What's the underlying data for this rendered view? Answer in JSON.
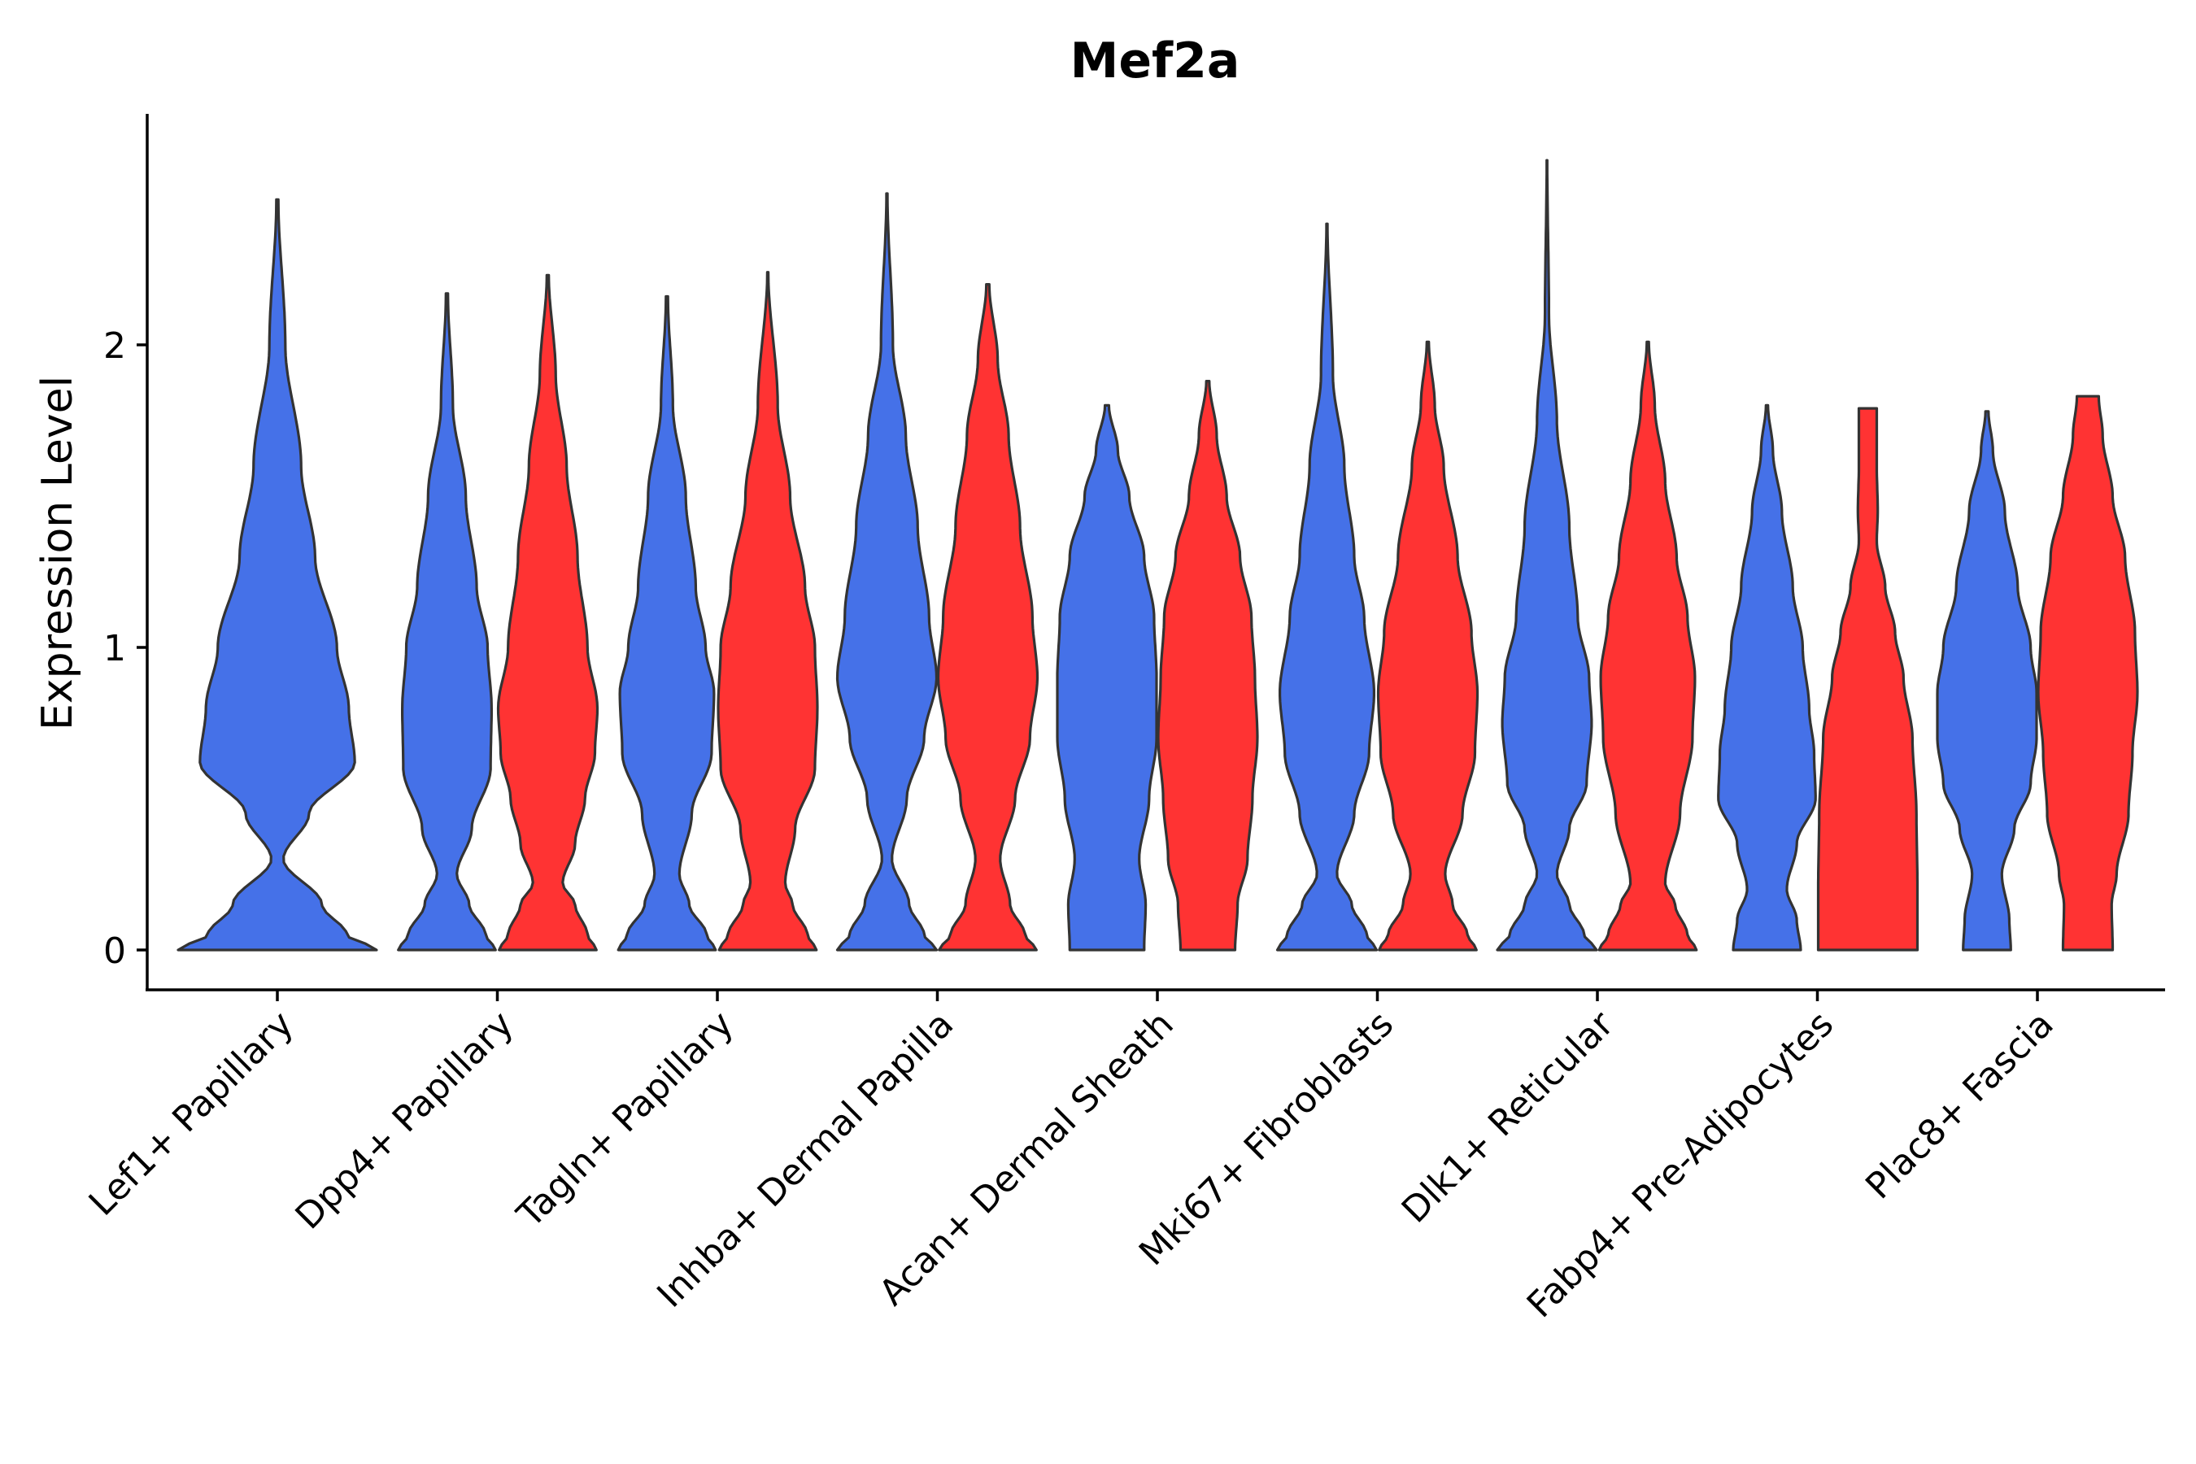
{
  "chart_data": {
    "type": "violin",
    "title": "Mef2a",
    "xlabel": "",
    "ylabel": "Expression Level",
    "ylim": [
      -0.13,
      2.75
    ],
    "yticks": [
      0,
      1,
      2
    ],
    "colors": {
      "group_a": "#4571E8",
      "group_b": "#FF3333",
      "outline": "#333333"
    },
    "categories": [
      "Lef1+ Papillary",
      "Dpp4+ Papillary",
      "Tagln+ Papillary",
      "Inhba+ Dermal Papilla",
      "Acan+ Dermal Sheath",
      "Mki67+ Fibroblasts",
      "Dlk1+ Reticular",
      "Fabp4+ Pre-Adipocytes",
      "Plac8+ Fascia"
    ],
    "series": [
      {
        "name": "group_a",
        "color": "#4571E8",
        "max_values": [
          2.48,
          2.17,
          2.16,
          2.5,
          1.8,
          2.4,
          2.61,
          1.8,
          1.78
        ]
      },
      {
        "name": "group_b",
        "color": "#FF3333",
        "max_values": [
          null,
          2.23,
          2.24,
          2.2,
          1.88,
          2.01,
          2.01,
          1.79,
          1.83
        ]
      }
    ],
    "violins": [
      {
        "category": "Lef1+ Papillary",
        "group": "group_a",
        "max": 2.48,
        "profile": [
          [
            0,
            1.0
          ],
          [
            0.05,
            0.7
          ],
          [
            0.15,
            0.45
          ],
          [
            0.3,
            0.06
          ],
          [
            0.45,
            0.32
          ],
          [
            0.62,
            0.78
          ],
          [
            0.8,
            0.72
          ],
          [
            1.0,
            0.6
          ],
          [
            1.3,
            0.38
          ],
          [
            1.6,
            0.24
          ],
          [
            2.0,
            0.08
          ],
          [
            2.48,
            0.01
          ]
        ]
      },
      {
        "category": "Dpp4+ Papillary",
        "group": "group_a",
        "max": 2.17,
        "profile": [
          [
            0,
            0.98
          ],
          [
            0.05,
            0.78
          ],
          [
            0.15,
            0.45
          ],
          [
            0.25,
            0.2
          ],
          [
            0.4,
            0.5
          ],
          [
            0.6,
            0.88
          ],
          [
            0.8,
            0.9
          ],
          [
            1.0,
            0.82
          ],
          [
            1.2,
            0.6
          ],
          [
            1.5,
            0.38
          ],
          [
            1.8,
            0.12
          ],
          [
            2.17,
            0.02
          ]
        ]
      },
      {
        "category": "Dpp4+ Papillary",
        "group": "group_b",
        "max": 2.23,
        "profile": [
          [
            0,
            0.98
          ],
          [
            0.05,
            0.8
          ],
          [
            0.15,
            0.55
          ],
          [
            0.22,
            0.3
          ],
          [
            0.35,
            0.55
          ],
          [
            0.5,
            0.75
          ],
          [
            0.65,
            0.95
          ],
          [
            0.8,
            1.0
          ],
          [
            1.0,
            0.8
          ],
          [
            1.3,
            0.6
          ],
          [
            1.6,
            0.38
          ],
          [
            1.9,
            0.16
          ],
          [
            2.23,
            0.02
          ]
        ]
      },
      {
        "category": "Tagln+ Papillary",
        "group": "group_a",
        "max": 2.16,
        "profile": [
          [
            0,
            0.98
          ],
          [
            0.05,
            0.8
          ],
          [
            0.15,
            0.45
          ],
          [
            0.25,
            0.25
          ],
          [
            0.45,
            0.5
          ],
          [
            0.65,
            0.9
          ],
          [
            0.85,
            0.95
          ],
          [
            1.0,
            0.78
          ],
          [
            1.2,
            0.58
          ],
          [
            1.5,
            0.38
          ],
          [
            1.8,
            0.12
          ],
          [
            2.16,
            0.02
          ]
        ]
      },
      {
        "category": "Tagln+ Papillary",
        "group": "group_b",
        "max": 2.24,
        "profile": [
          [
            0,
            0.98
          ],
          [
            0.05,
            0.8
          ],
          [
            0.15,
            0.5
          ],
          [
            0.22,
            0.35
          ],
          [
            0.4,
            0.55
          ],
          [
            0.6,
            0.95
          ],
          [
            0.8,
            1.0
          ],
          [
            1.0,
            0.95
          ],
          [
            1.2,
            0.75
          ],
          [
            1.5,
            0.45
          ],
          [
            1.8,
            0.2
          ],
          [
            2.24,
            0.01
          ]
        ]
      },
      {
        "category": "Inhba+ Dermal Papilla",
        "group": "group_a",
        "max": 2.5,
        "profile": [
          [
            0,
            1.0
          ],
          [
            0.05,
            0.75
          ],
          [
            0.15,
            0.45
          ],
          [
            0.3,
            0.1
          ],
          [
            0.5,
            0.4
          ],
          [
            0.7,
            0.75
          ],
          [
            0.9,
            1.0
          ],
          [
            1.1,
            0.85
          ],
          [
            1.4,
            0.62
          ],
          [
            1.7,
            0.38
          ],
          [
            2.0,
            0.12
          ],
          [
            2.5,
            0.01
          ]
        ]
      },
      {
        "category": "Inhba+ Dermal Papilla",
        "group": "group_b",
        "max": 2.2,
        "profile": [
          [
            0,
            0.98
          ],
          [
            0.05,
            0.75
          ],
          [
            0.15,
            0.45
          ],
          [
            0.3,
            0.25
          ],
          [
            0.5,
            0.55
          ],
          [
            0.7,
            0.85
          ],
          [
            0.9,
            1.0
          ],
          [
            1.1,
            0.9
          ],
          [
            1.4,
            0.65
          ],
          [
            1.7,
            0.42
          ],
          [
            1.95,
            0.2
          ],
          [
            2.2,
            0.03
          ]
        ]
      },
      {
        "category": "Acan+ Dermal Sheath",
        "group": "group_a",
        "max": 1.8,
        "profile": [
          [
            0,
            0.75
          ],
          [
            0.15,
            0.78
          ],
          [
            0.3,
            0.65
          ],
          [
            0.5,
            0.85
          ],
          [
            0.7,
            1.0
          ],
          [
            0.9,
            1.0
          ],
          [
            1.1,
            0.95
          ],
          [
            1.3,
            0.75
          ],
          [
            1.5,
            0.45
          ],
          [
            1.65,
            0.22
          ],
          [
            1.8,
            0.04
          ]
        ]
      },
      {
        "category": "Acan+ Dermal Sheath",
        "group": "group_b",
        "max": 1.88,
        "profile": [
          [
            0,
            0.55
          ],
          [
            0.15,
            0.6
          ],
          [
            0.3,
            0.8
          ],
          [
            0.5,
            0.9
          ],
          [
            0.7,
            1.0
          ],
          [
            0.9,
            0.95
          ],
          [
            1.1,
            0.88
          ],
          [
            1.3,
            0.65
          ],
          [
            1.5,
            0.38
          ],
          [
            1.7,
            0.18
          ],
          [
            1.88,
            0.03
          ]
        ]
      },
      {
        "category": "Mki67+ Fibroblasts",
        "group": "group_a",
        "max": 2.4,
        "profile": [
          [
            0,
            1.0
          ],
          [
            0.05,
            0.8
          ],
          [
            0.15,
            0.5
          ],
          [
            0.25,
            0.2
          ],
          [
            0.45,
            0.55
          ],
          [
            0.65,
            0.85
          ],
          [
            0.85,
            0.95
          ],
          [
            1.1,
            0.75
          ],
          [
            1.3,
            0.55
          ],
          [
            1.6,
            0.35
          ],
          [
            1.9,
            0.12
          ],
          [
            2.4,
            0.01
          ]
        ]
      },
      {
        "category": "Mki67+ Fibroblasts",
        "group": "group_b",
        "max": 2.01,
        "profile": [
          [
            0,
            0.98
          ],
          [
            0.05,
            0.8
          ],
          [
            0.15,
            0.5
          ],
          [
            0.25,
            0.35
          ],
          [
            0.45,
            0.7
          ],
          [
            0.65,
            0.95
          ],
          [
            0.85,
            1.0
          ],
          [
            1.05,
            0.88
          ],
          [
            1.3,
            0.6
          ],
          [
            1.6,
            0.32
          ],
          [
            1.8,
            0.14
          ],
          [
            2.01,
            0.02
          ]
        ]
      },
      {
        "category": "Dlk1+ Reticular",
        "group": "group_a",
        "max": 2.61,
        "profile": [
          [
            0,
            1.0
          ],
          [
            0.05,
            0.75
          ],
          [
            0.15,
            0.45
          ],
          [
            0.25,
            0.2
          ],
          [
            0.4,
            0.45
          ],
          [
            0.55,
            0.8
          ],
          [
            0.75,
            0.9
          ],
          [
            0.9,
            0.85
          ],
          [
            1.1,
            0.62
          ],
          [
            1.4,
            0.45
          ],
          [
            1.75,
            0.2
          ],
          [
            2.1,
            0.04
          ],
          [
            2.61,
            0.005
          ]
        ]
      },
      {
        "category": "Dlk1+ Reticular",
        "group": "group_b",
        "max": 2.01,
        "profile": [
          [
            0,
            0.98
          ],
          [
            0.05,
            0.8
          ],
          [
            0.15,
            0.55
          ],
          [
            0.22,
            0.35
          ],
          [
            0.45,
            0.65
          ],
          [
            0.7,
            0.9
          ],
          [
            0.9,
            0.95
          ],
          [
            1.1,
            0.8
          ],
          [
            1.3,
            0.58
          ],
          [
            1.55,
            0.35
          ],
          [
            1.8,
            0.14
          ],
          [
            2.01,
            0.02
          ]
        ]
      },
      {
        "category": "Fabp4+ Pre-Adipocytes",
        "group": "group_a",
        "max": 1.8,
        "profile": [
          [
            0,
            0.68
          ],
          [
            0.1,
            0.6
          ],
          [
            0.2,
            0.4
          ],
          [
            0.35,
            0.6
          ],
          [
            0.5,
            0.98
          ],
          [
            0.65,
            0.95
          ],
          [
            0.8,
            0.85
          ],
          [
            1.0,
            0.72
          ],
          [
            1.2,
            0.52
          ],
          [
            1.45,
            0.3
          ],
          [
            1.65,
            0.12
          ],
          [
            1.8,
            0.02
          ]
        ]
      },
      {
        "category": "Fabp4+ Pre-Adipocytes",
        "group": "group_b",
        "max": 1.79,
        "profile": [
          [
            0,
            1.0
          ],
          [
            0.2,
            1.0
          ],
          [
            0.45,
            0.98
          ],
          [
            0.7,
            0.9
          ],
          [
            0.9,
            0.72
          ],
          [
            1.05,
            0.55
          ],
          [
            1.2,
            0.35
          ],
          [
            1.35,
            0.18
          ],
          [
            1.45,
            0.2
          ],
          [
            1.6,
            0.18
          ],
          [
            1.79,
            0.18
          ]
        ]
      },
      {
        "category": "Plac8+ Fascia",
        "group": "group_a",
        "max": 1.78,
        "profile": [
          [
            0,
            0.48
          ],
          [
            0.1,
            0.45
          ],
          [
            0.25,
            0.3
          ],
          [
            0.4,
            0.55
          ],
          [
            0.55,
            0.88
          ],
          [
            0.7,
            1.0
          ],
          [
            0.85,
            1.0
          ],
          [
            1.0,
            0.88
          ],
          [
            1.2,
            0.62
          ],
          [
            1.45,
            0.36
          ],
          [
            1.65,
            0.12
          ],
          [
            1.78,
            0.03
          ]
        ]
      },
      {
        "category": "Plac8+ Fascia",
        "group": "group_b",
        "max": 1.83,
        "profile": [
          [
            0,
            0.5
          ],
          [
            0.15,
            0.48
          ],
          [
            0.25,
            0.58
          ],
          [
            0.45,
            0.82
          ],
          [
            0.65,
            0.9
          ],
          [
            0.85,
            1.0
          ],
          [
            1.05,
            0.95
          ],
          [
            1.3,
            0.75
          ],
          [
            1.5,
            0.5
          ],
          [
            1.7,
            0.3
          ],
          [
            1.83,
            0.22
          ]
        ]
      }
    ]
  }
}
